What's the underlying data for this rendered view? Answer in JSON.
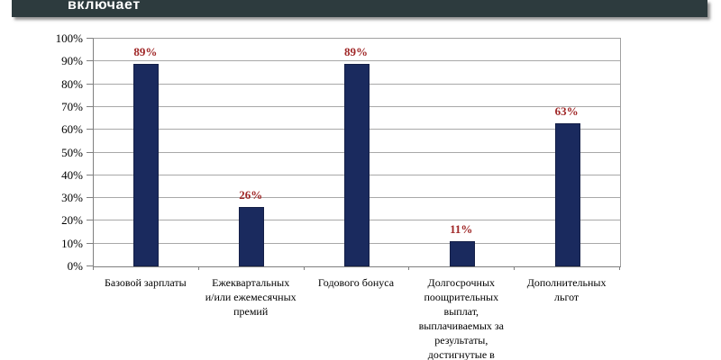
{
  "header": {
    "title": "включает"
  },
  "colors": {
    "header_bg": "#2d3b3e",
    "header_text": "#ffffff",
    "bar": "#1a2a5e",
    "value_label": "#a02828",
    "gridline": "#a8a8a8",
    "axis": "#7f7f7f"
  },
  "chart_data": {
    "type": "bar",
    "title": "",
    "xlabel": "",
    "ylabel": "",
    "categories": [
      "Базовой зарплаты",
      "Ежеквартальных и/или ежемесячных премий",
      "Годового бонуса",
      "Долгосрочных поощрительных выплат, выплачиваемых за результаты, достигнутые в",
      "Дополнительных льгот"
    ],
    "categories_wrapped": [
      [
        "Базовой зарплаты"
      ],
      [
        "Ежеквартальных",
        "и/или ежемесячных",
        "премий"
      ],
      [
        "Годового бонуса"
      ],
      [
        "Долгосрочных",
        "поощрительных",
        "выплат,",
        "выплачиваемых за",
        "результаты,",
        "достигнутые в"
      ],
      [
        "Дополнительных",
        "льгот"
      ]
    ],
    "values": [
      89,
      26,
      89,
      11,
      63
    ],
    "value_labels": [
      "89%",
      "26%",
      "89%",
      "11%",
      "63%"
    ],
    "ylim": [
      0,
      100
    ],
    "y_tick_step": 10,
    "y_tick_labels": [
      "0%",
      "10%",
      "20%",
      "30%",
      "40%",
      "50%",
      "60%",
      "70%",
      "80%",
      "90%",
      "100%"
    ],
    "grid": true,
    "legend": false
  }
}
